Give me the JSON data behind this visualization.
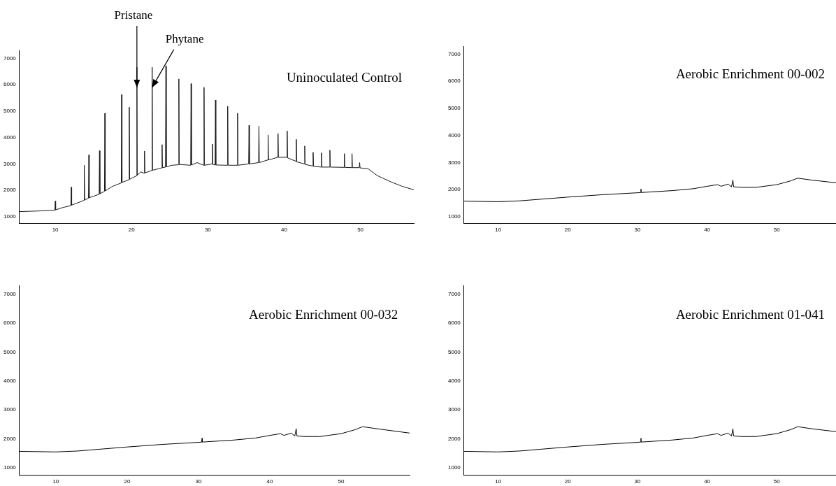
{
  "chart_data": [
    {
      "type": "line",
      "title": "Uninoculated Control",
      "color": "#1a1a1a",
      "xlim": [
        5.3,
        57
      ],
      "ylim": [
        750,
        7300
      ],
      "xticks": [
        10,
        20,
        30,
        40,
        50
      ],
      "yticks": [
        1000,
        2000,
        3000,
        4000,
        5000,
        6000,
        7000
      ],
      "annotations": [
        {
          "text": "Pristane",
          "x": 20.7,
          "y": 5900
        },
        {
          "text": "Phytane",
          "x": 22.7,
          "y": 5900
        }
      ],
      "x": [
        5.3,
        8,
        9.2,
        9.95,
        10,
        10.05,
        11,
        12.05,
        12.1,
        12.15,
        13.5,
        13.75,
        13.8,
        13.85,
        14.35,
        14.4,
        14.45,
        15.75,
        15.8,
        15.85,
        16.45,
        16.5,
        16.55,
        17.5,
        18.65,
        18.7,
        18.75,
        19.65,
        19.7,
        19.75,
        20.65,
        20.7,
        20.75,
        21.2,
        21.65,
        21.7,
        21.75,
        22.65,
        22.7,
        22.75,
        23.95,
        24,
        24.05,
        24.45,
        24.5,
        24.55,
        25.3,
        26.15,
        26.2,
        26.25,
        27.75,
        27.8,
        27.85,
        28.6,
        29.45,
        29.5,
        29.55,
        30.55,
        30.6,
        30.65,
        30.95,
        31,
        31.05,
        32.55,
        32.6,
        32.65,
        33.85,
        33.9,
        33.95,
        35.35,
        35.4,
        35.45,
        36.65,
        36.7,
        36.75,
        37.85,
        37.9,
        37.95,
        39.15,
        39.2,
        39.25,
        40.35,
        40.4,
        40.45,
        41.55,
        41.6,
        41.65,
        42.65,
        42.7,
        42.75,
        43.75,
        43.8,
        43.85,
        44.85,
        44.9,
        44.95,
        45.95,
        46,
        46.05,
        47.85,
        47.9,
        47.95,
        48.85,
        48.9,
        48.95,
        49.85,
        49.9,
        49.95,
        51,
        52.2,
        54,
        55.5,
        57
      ],
      "values": [
        1195,
        1220,
        1240,
        1250,
        1590,
        1260,
        1350,
        1420,
        2120,
        1440,
        1590,
        1620,
        2950,
        1640,
        1700,
        3340,
        1720,
        1850,
        3500,
        1870,
        1960,
        4920,
        1980,
        2150,
        2280,
        5630,
        2300,
        2400,
        5150,
        2420,
        2550,
        6660,
        2570,
        2700,
        2650,
        3490,
        2660,
        2750,
        6660,
        2760,
        2850,
        3730,
        2860,
        2880,
        6710,
        2890,
        2950,
        2970,
        6220,
        2980,
        2950,
        6040,
        2960,
        3050,
        2950,
        5900,
        2950,
        3000,
        3750,
        2980,
        2960,
        5420,
        2960,
        2950,
        5180,
        2950,
        2950,
        4920,
        2950,
        3000,
        4460,
        3000,
        3050,
        4430,
        3050,
        3150,
        4100,
        3150,
        3250,
        4150,
        3250,
        3250,
        4250,
        3230,
        3100,
        3930,
        3080,
        3000,
        3680,
        2980,
        2920,
        3440,
        2910,
        2880,
        3420,
        2880,
        2880,
        3520,
        2880,
        2870,
        3390,
        2870,
        2860,
        3390,
        2860,
        2860,
        3050,
        2850,
        2820,
        2560,
        2320,
        2150,
        2020
      ]
    },
    {
      "type": "line",
      "title": "Aerobic Enrichment 00-002",
      "color": "#000000",
      "xlim": [
        5.1,
        58.5
      ],
      "ylim": [
        750,
        7300
      ],
      "xticks": [
        10,
        20,
        30,
        40,
        50
      ],
      "yticks": [
        1000,
        2000,
        3000,
        4000,
        5000,
        6000,
        7000
      ],
      "x": [
        5.1,
        10,
        13,
        16,
        20,
        25,
        30,
        30.45,
        30.5,
        30.55,
        35,
        38,
        40,
        41.5,
        42,
        43,
        43.5,
        43.7,
        43.8,
        45,
        47,
        50,
        52,
        53,
        55,
        58.5
      ],
      "values": [
        1570,
        1550,
        1580,
        1640,
        1720,
        1810,
        1880,
        1890,
        2020,
        1890,
        1960,
        2030,
        2120,
        2180,
        2120,
        2200,
        2100,
        2350,
        2100,
        2080,
        2080,
        2180,
        2320,
        2420,
        2350,
        2250
      ]
    },
    {
      "type": "line",
      "title": "Aerobic Enrichment 00-032",
      "color": "#000000",
      "xlim": [
        4.9,
        59.6
      ],
      "ylim": [
        750,
        7300
      ],
      "xticks": [
        10,
        20,
        30,
        40,
        50
      ],
      "yticks": [
        1000,
        2000,
        3000,
        4000,
        5000,
        6000,
        7000
      ],
      "x": [
        4.9,
        10,
        13,
        16,
        20,
        25,
        30,
        30.45,
        30.5,
        30.55,
        35,
        38,
        40,
        41.5,
        42,
        43,
        43.5,
        43.7,
        43.8,
        45,
        47,
        50,
        52,
        53,
        55,
        59.6
      ],
      "values": [
        1570,
        1550,
        1580,
        1640,
        1720,
        1810,
        1880,
        1890,
        2020,
        1890,
        1960,
        2030,
        2120,
        2180,
        2120,
        2200,
        2100,
        2350,
        2100,
        2080,
        2080,
        2180,
        2320,
        2420,
        2350,
        2200
      ]
    },
    {
      "type": "line",
      "title": "Aerobic Enrichment 01-041",
      "color": "#000000",
      "xlim": [
        5.1,
        58.5
      ],
      "ylim": [
        750,
        7300
      ],
      "xticks": [
        10,
        20,
        30,
        40,
        50
      ],
      "yticks": [
        1000,
        2000,
        3000,
        4000,
        5000,
        6000,
        7000
      ],
      "x": [
        5.1,
        10,
        13,
        16,
        20,
        25,
        30,
        30.45,
        30.5,
        30.55,
        35,
        38,
        40,
        41.5,
        42,
        43,
        43.5,
        43.7,
        43.8,
        45,
        47,
        50,
        52,
        53,
        55,
        58.5
      ],
      "values": [
        1570,
        1550,
        1580,
        1640,
        1720,
        1810,
        1880,
        1890,
        2020,
        1890,
        1960,
        2030,
        2120,
        2180,
        2120,
        2200,
        2100,
        2350,
        2100,
        2080,
        2080,
        2180,
        2320,
        2420,
        2350,
        2250
      ]
    }
  ]
}
